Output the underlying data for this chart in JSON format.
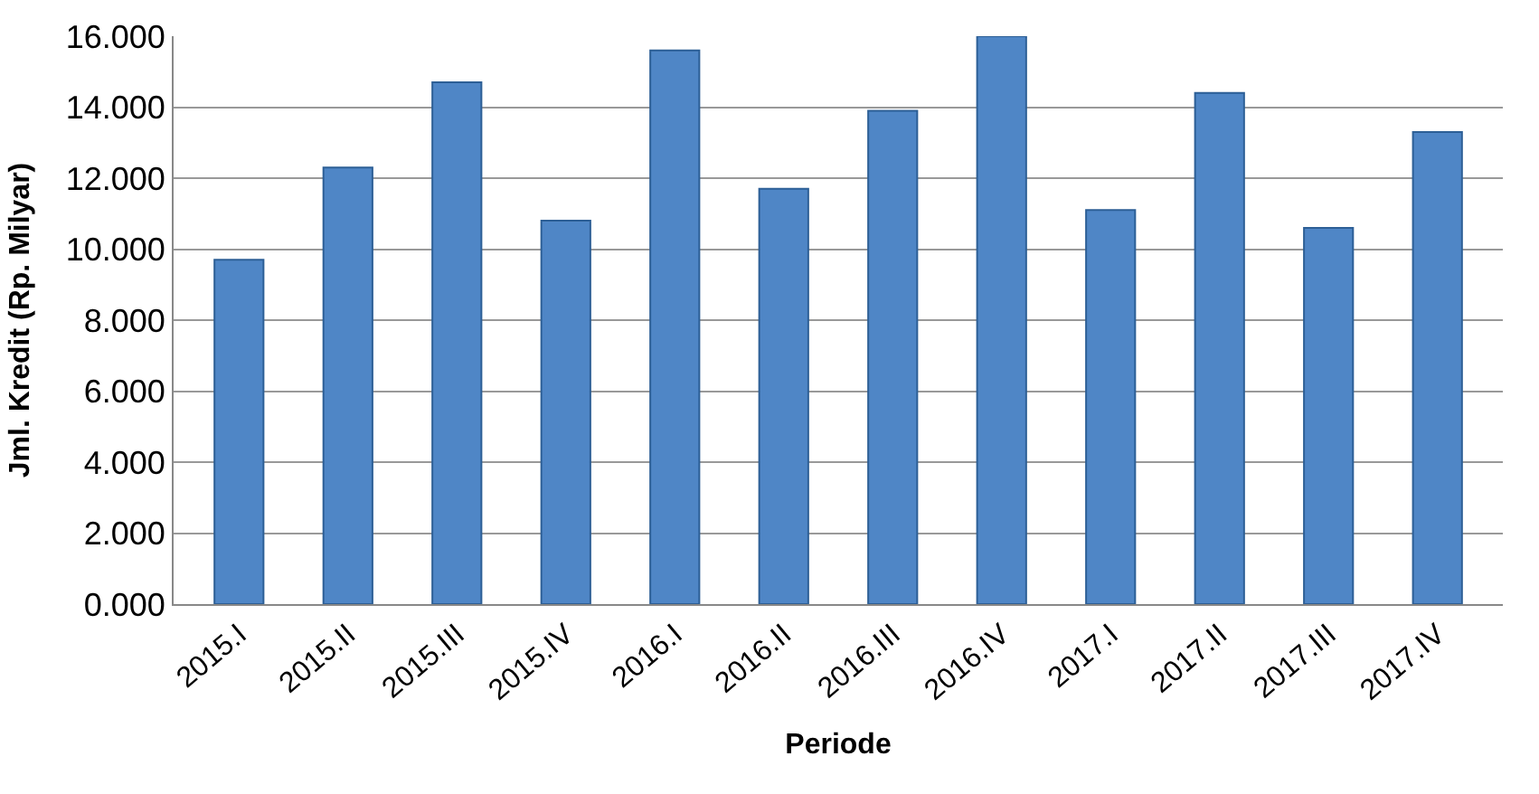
{
  "chart_data": {
    "type": "bar",
    "xlabel": "Periode",
    "ylabel": "Jml. Kredit (Rp. Milyar)",
    "categories": [
      "2015.I",
      "2015.II",
      "2015.III",
      "2015.IV",
      "2016.I",
      "2016.II",
      "2016.III",
      "2016.IV",
      "2017.I",
      "2017.II",
      "2017.III",
      "2017.IV"
    ],
    "values": [
      9.7,
      12.3,
      14.7,
      10.8,
      15.6,
      11.7,
      13.9,
      16.0,
      11.1,
      14.4,
      10.6,
      13.3
    ],
    "color": "#4f86c6",
    "ylim": [
      0,
      16
    ],
    "yticks": [
      {
        "value": 0,
        "label": "0.000"
      },
      {
        "value": 2,
        "label": "2.000"
      },
      {
        "value": 4,
        "label": "4.000"
      },
      {
        "value": 6,
        "label": "6.000"
      },
      {
        "value": 8,
        "label": "8.000"
      },
      {
        "value": 10,
        "label": "10.000"
      },
      {
        "value": 12,
        "label": "12.000"
      },
      {
        "value": 14,
        "label": "14.000"
      },
      {
        "value": 16,
        "label": "16.000"
      }
    ],
    "grid": "y"
  }
}
